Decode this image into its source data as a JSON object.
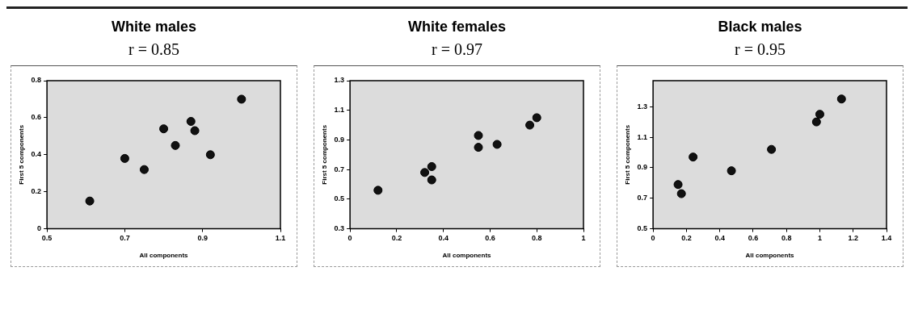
{
  "chart_data": [
    {
      "type": "scatter",
      "title": "White males",
      "subtitle": "r = 0.85",
      "xlabel": "All components",
      "ylabel": "First 5 components",
      "marker": "circle",
      "xlim": [
        0.5,
        1.1
      ],
      "xticks": [
        0.5,
        0.7,
        0.9,
        1.1
      ],
      "ylim": [
        0,
        0.8
      ],
      "yticks": [
        0,
        0.2,
        0.4,
        0.6,
        0.8
      ],
      "series": [
        {
          "color": "#111111",
          "x": [
            0.61,
            0.7,
            0.75,
            0.8,
            0.83,
            0.87,
            0.88,
            0.92,
            1.0
          ],
          "values": [
            0.15,
            0.38,
            0.32,
            0.54,
            0.45,
            0.58,
            0.53,
            0.4,
            0.7
          ]
        }
      ]
    },
    {
      "type": "scatter",
      "title": "White females",
      "subtitle": "r = 0.97",
      "xlabel": "All components",
      "ylabel": "First 5 components",
      "marker": "circle",
      "xlim": [
        0,
        1
      ],
      "xticks": [
        0,
        0.2,
        0.4,
        0.6,
        0.8,
        1
      ],
      "ylim": [
        0.3,
        1.3
      ],
      "yticks": [
        0.3,
        0.5,
        0.7,
        0.9,
        1.1,
        1.3
      ],
      "series": [
        {
          "color": "#111111",
          "x": [
            0.12,
            0.32,
            0.35,
            0.35,
            0.55,
            0.55,
            0.63,
            0.77,
            0.8
          ],
          "values": [
            0.56,
            0.68,
            0.72,
            0.63,
            0.93,
            0.85,
            0.87,
            1.0,
            1.05
          ]
        }
      ]
    },
    {
      "type": "scatter",
      "title": "Black males",
      "subtitle": "r = 0.95",
      "xlabel": "All components",
      "ylabel": "First 5 components",
      "marker": "circle",
      "xlim": [
        0,
        1.4
      ],
      "xticks": [
        0,
        0.2,
        0.4,
        0.6,
        0.8,
        1,
        1.2,
        1.4
      ],
      "ylim": [
        0.5,
        1.47
      ],
      "yticks": [
        0.5,
        0.7,
        0.9,
        1.1,
        1.3
      ],
      "series": [
        {
          "color": "#111111",
          "x": [
            0.15,
            0.17,
            0.24,
            0.47,
            0.71,
            0.98,
            1.0,
            1.13
          ],
          "values": [
            0.79,
            0.73,
            0.97,
            0.88,
            1.02,
            1.2,
            1.25,
            1.35
          ]
        }
      ]
    }
  ]
}
